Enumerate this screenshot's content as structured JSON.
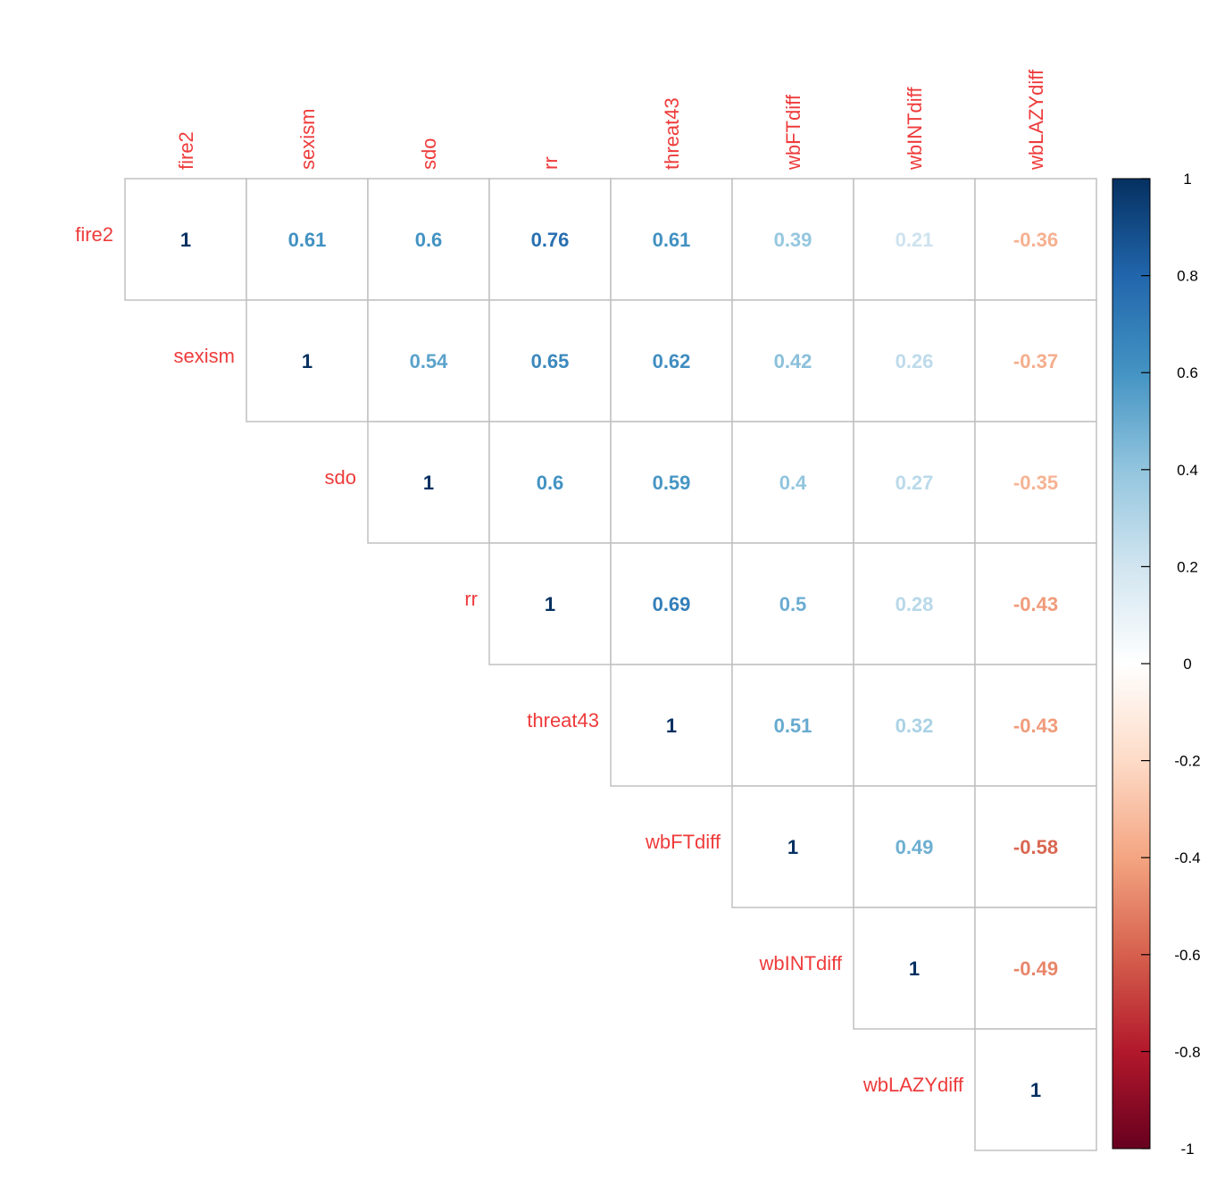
{
  "chart_data": {
    "type": "heatmap",
    "variables": [
      "fire2",
      "sexism",
      "sdo",
      "rr",
      "threat43",
      "wbFTdiff",
      "wbINTdiff",
      "wbLAZYdiff"
    ],
    "rows": [
      {
        "label": "fire2",
        "values": [
          1,
          0.61,
          0.6,
          0.76,
          0.61,
          0.39,
          0.21,
          -0.36
        ]
      },
      {
        "label": "sexism",
        "values": [
          null,
          1,
          0.54,
          0.65,
          0.62,
          0.42,
          0.26,
          -0.37
        ]
      },
      {
        "label": "sdo",
        "values": [
          null,
          null,
          1,
          0.6,
          0.59,
          0.4,
          0.27,
          -0.35
        ]
      },
      {
        "label": "rr",
        "values": [
          null,
          null,
          null,
          1,
          0.69,
          0.5,
          0.28,
          -0.43
        ]
      },
      {
        "label": "threat43",
        "values": [
          null,
          null,
          null,
          null,
          1,
          0.51,
          0.32,
          -0.43
        ]
      },
      {
        "label": "wbFTdiff",
        "values": [
          null,
          null,
          null,
          null,
          null,
          1,
          0.49,
          -0.58
        ]
      },
      {
        "label": "wbINTdiff",
        "values": [
          null,
          null,
          null,
          null,
          null,
          null,
          1,
          -0.49
        ]
      },
      {
        "label": "wbLAZYdiff",
        "values": [
          null,
          null,
          null,
          null,
          null,
          null,
          null,
          1
        ]
      }
    ],
    "triangle": "upper",
    "colorbar": {
      "range": [
        -1,
        1
      ],
      "ticks": [
        "1",
        "0.8",
        "0.6",
        "0.4",
        "0.2",
        "0",
        "-0.2",
        "-0.4",
        "-0.6",
        "-0.8",
        "-1"
      ],
      "palette": [
        "#67001F",
        "#B2182B",
        "#D6604D",
        "#F4A582",
        "#FDDBC7",
        "#FFFFFF",
        "#D1E5F0",
        "#92C5DE",
        "#4393C3",
        "#2166AC",
        "#053061"
      ]
    },
    "colors": {
      "label": "#EE3B3B",
      "grid": "#C0C0C0"
    }
  }
}
